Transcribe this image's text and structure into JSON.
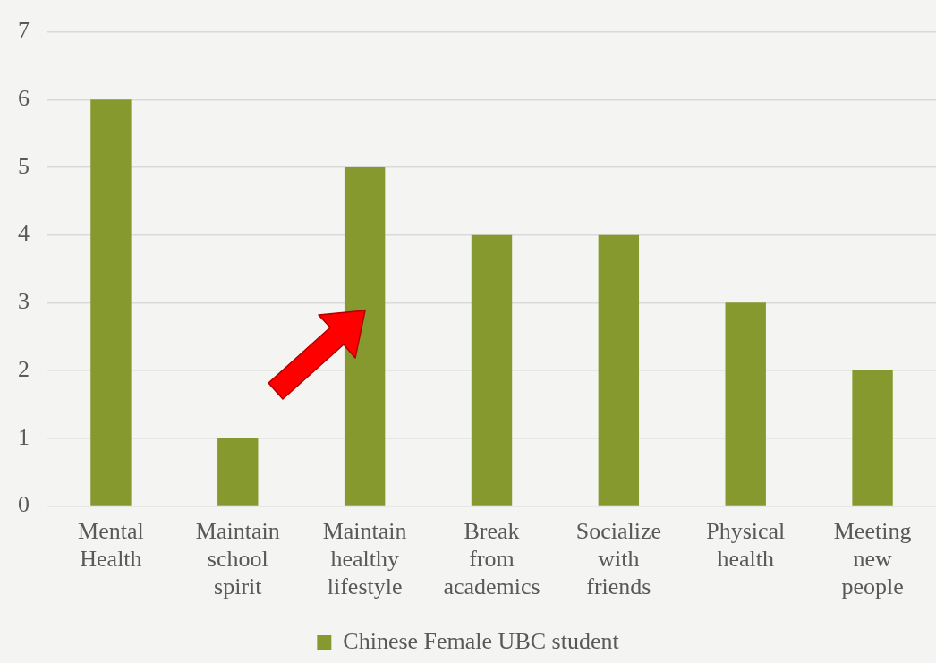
{
  "chart_data": {
    "type": "bar",
    "categories": [
      "Mental Health",
      "Maintain school spirit",
      "Maintain healthy lifestyle",
      "Break from academics",
      "Socialize with friends",
      "Physical health",
      "Meeting new people"
    ],
    "series": [
      {
        "name": "Chinese Female UBC student",
        "color": "#86992e",
        "values": [
          6,
          1,
          5,
          4,
          4,
          3,
          2
        ]
      }
    ],
    "ylim": [
      0,
      7
    ],
    "yticks": [
      0,
      1,
      2,
      3,
      4,
      5,
      6,
      7
    ],
    "grid": "y",
    "legend": "bottom"
  }
}
